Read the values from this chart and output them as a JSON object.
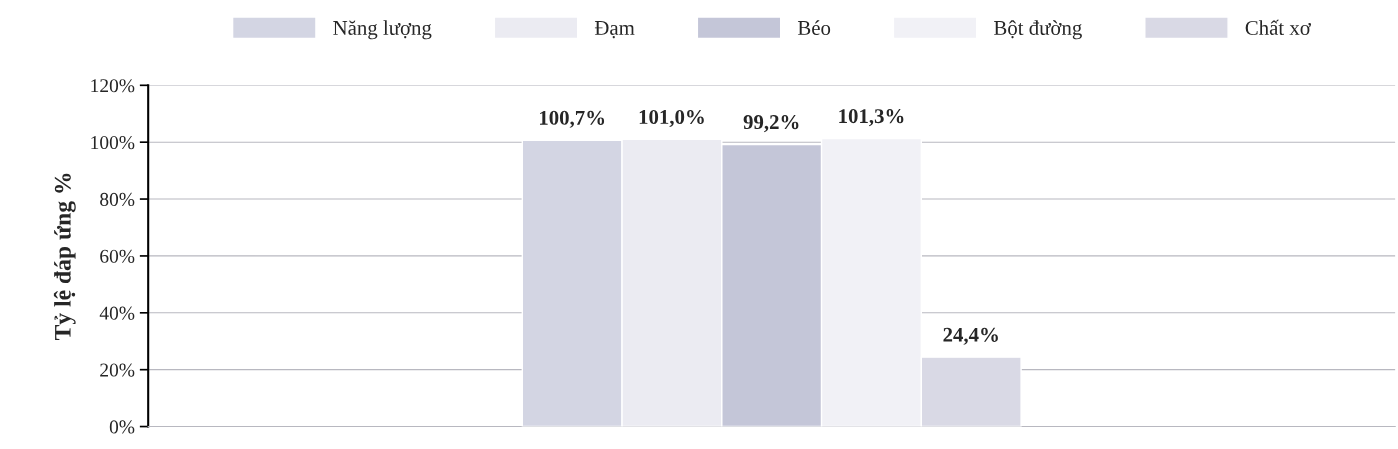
{
  "chart_data": {
    "type": "bar",
    "ylabel": "Tỷ lệ đáp ứng %",
    "categories": [
      null
    ],
    "series": [
      {
        "name": "Năng lượng",
        "color": "#d3d5e3",
        "values": [
          100.7
        ],
        "value_labels": [
          "100,7%"
        ]
      },
      {
        "name": "Đạm",
        "color": "#ebebf2",
        "values": [
          101.0
        ],
        "value_labels": [
          "101,0%"
        ]
      },
      {
        "name": "Béo",
        "color": "#c4c6d8",
        "values": [
          99.2
        ],
        "value_labels": [
          "99,2%"
        ]
      },
      {
        "name": "Bột đường",
        "color": "#f1f1f6",
        "values": [
          101.3
        ],
        "value_labels": [
          "101,3%"
        ]
      },
      {
        "name": "Chất xơ",
        "color": "#d9d9e5",
        "values": [
          24.4
        ],
        "value_labels": [
          "24,4%"
        ]
      }
    ],
    "ylim": [
      0,
      120
    ],
    "yticks": [
      {
        "value": 0,
        "label": "0%"
      },
      {
        "value": 20,
        "label": "20%"
      },
      {
        "value": 40,
        "label": "40%"
      },
      {
        "value": 60,
        "label": "60%"
      },
      {
        "value": 80,
        "label": "80%"
      },
      {
        "value": 100,
        "label": "100%"
      },
      {
        "value": 120,
        "label": "120%"
      }
    ],
    "grid": "y",
    "legend": "top"
  }
}
